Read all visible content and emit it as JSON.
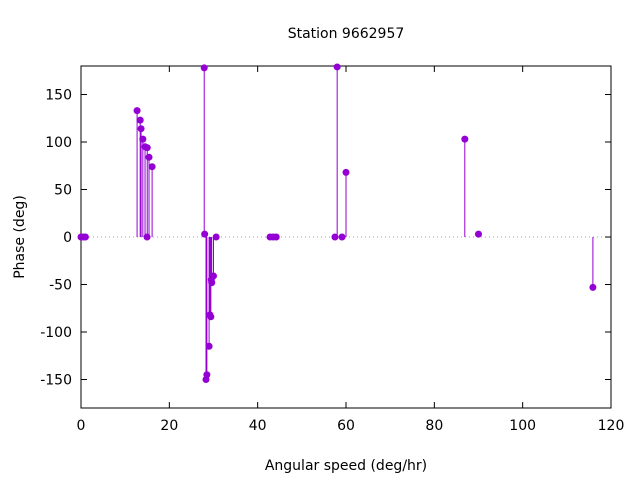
{
  "chart_data": {
    "type": "scatter",
    "style": "impulses-with-points",
    "title": "Station 9662957",
    "xlabel": "Angular speed (deg/hr)",
    "ylabel": "Phase (deg)",
    "xlim": [
      0,
      120
    ],
    "ylim": [
      -180,
      180
    ],
    "xticks": [
      0,
      20,
      40,
      60,
      80,
      100,
      120
    ],
    "yticks": [
      -150,
      -100,
      -50,
      0,
      50,
      100,
      150
    ],
    "color": "#9400d3",
    "grid": false,
    "zero_line": true,
    "points": [
      [
        0.0,
        0
      ],
      [
        0.5,
        0
      ],
      [
        1.0,
        0
      ],
      [
        12.7,
        133
      ],
      [
        13.4,
        123
      ],
      [
        13.6,
        114
      ],
      [
        14.0,
        103
      ],
      [
        14.5,
        95
      ],
      [
        14.96,
        0
      ],
      [
        15.0,
        94
      ],
      [
        15.4,
        84
      ],
      [
        16.1,
        74
      ],
      [
        27.9,
        178
      ],
      [
        28.0,
        3
      ],
      [
        28.3,
        -150
      ],
      [
        28.5,
        -145
      ],
      [
        29.0,
        -115
      ],
      [
        29.2,
        -82
      ],
      [
        29.4,
        -84
      ],
      [
        29.5,
        -45
      ],
      [
        29.6,
        -48
      ],
      [
        30.0,
        -41
      ],
      [
        30.6,
        0
      ],
      [
        42.8,
        0
      ],
      [
        43.5,
        0
      ],
      [
        44.2,
        0
      ],
      [
        57.5,
        0
      ],
      [
        58.0,
        179
      ],
      [
        59.1,
        0
      ],
      [
        60.0,
        68
      ],
      [
        86.9,
        103
      ],
      [
        90.0,
        3
      ],
      [
        115.9,
        -53
      ]
    ]
  }
}
